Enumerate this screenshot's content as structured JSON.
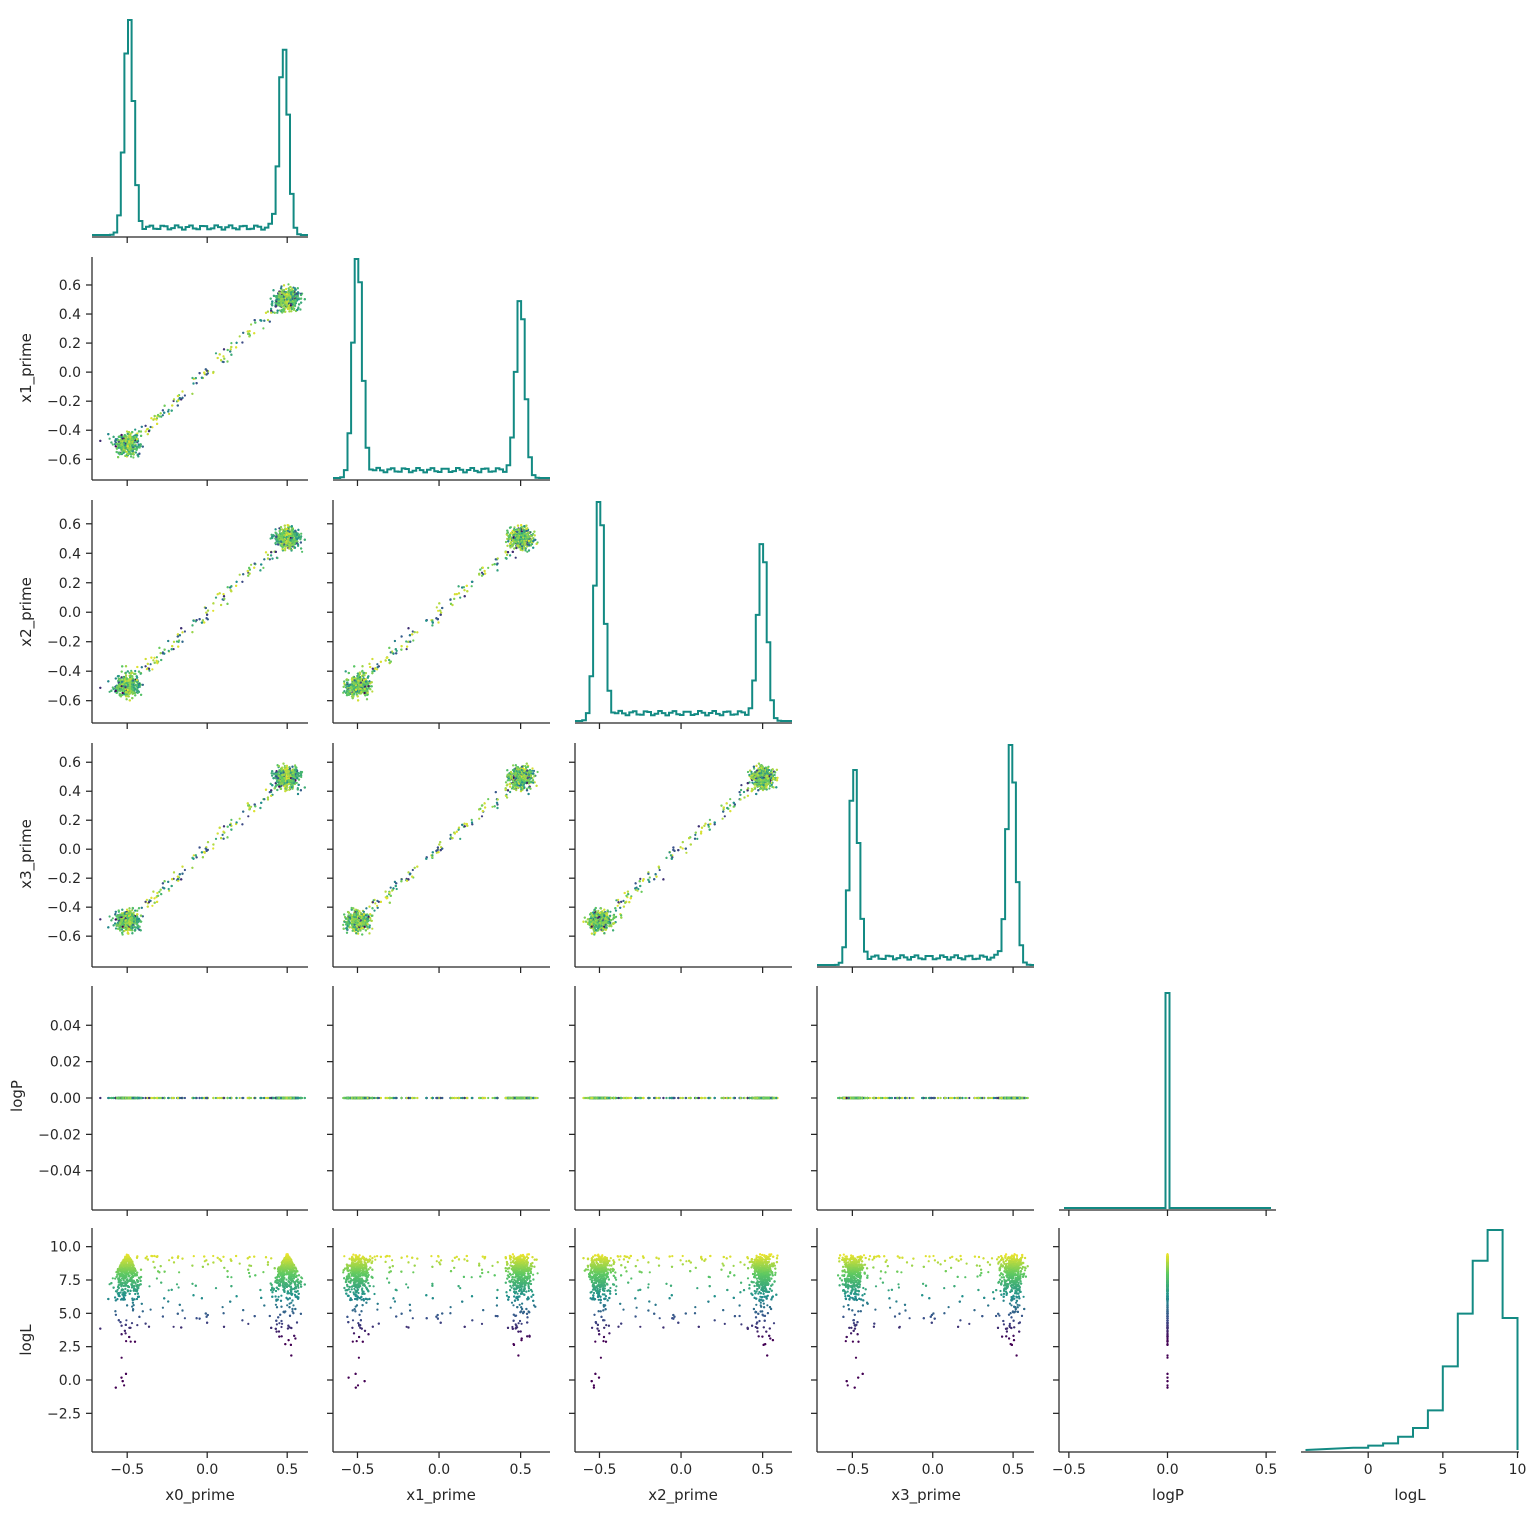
{
  "chart_data": {
    "type": "corner",
    "variables": [
      "x0_prime",
      "x1_prime",
      "x2_prime",
      "x3_prime",
      "logP",
      "logL"
    ],
    "colors": {
      "hist": "#138a83",
      "colormap": "viridis",
      "low": "#3b528b",
      "mid": "#21918c",
      "high": "#fde725"
    },
    "x_tick_labels": {
      "x0_prime": [
        "−0.5",
        "0.0",
        "0.5"
      ],
      "x1_prime": [
        "−0.5",
        "0.0",
        "0.5"
      ],
      "x2_prime": [
        "−0.5",
        "0.0",
        "0.5"
      ],
      "x3_prime": [
        "−0.5",
        "0.0",
        "0.5"
      ],
      "logP": [
        "−0.5",
        "0.0",
        "0.5"
      ],
      "logL": [
        "0",
        "5",
        "10"
      ]
    },
    "y_tick_labels": {
      "x1_prime": [
        "0.6",
        "0.4",
        "0.2",
        "0.0",
        "−0.2",
        "−0.4",
        "−0.6"
      ],
      "x2_prime": [
        "0.6",
        "0.4",
        "0.2",
        "0.0",
        "−0.2",
        "−0.4",
        "−0.6"
      ],
      "x3_prime": [
        "0.6",
        "0.4",
        "0.2",
        "0.0",
        "−0.2",
        "−0.4",
        "−0.6"
      ],
      "logP": [
        "0.04",
        "0.02",
        "0.00",
        "−0.02",
        "−0.04"
      ],
      "logL": [
        "10.0",
        "7.5",
        "5.0",
        "2.5",
        "0.0",
        "−2.5"
      ]
    },
    "ranges": {
      "x0_prime": [
        -0.72,
        0.63
      ],
      "x1_prime": [
        -0.65,
        0.68
      ],
      "x2_prime": [
        -0.65,
        0.68
      ],
      "x3_prime": [
        -0.72,
        0.63
      ],
      "logP": [
        -0.55,
        0.55
      ],
      "logL": [
        -4.5,
        10.1
      ]
    },
    "y_ranges": {
      "x1_prime": [
        -0.66,
        0.71
      ],
      "x2_prime": [
        -0.67,
        0.68
      ],
      "x3_prime": [
        -0.73,
        0.65
      ],
      "logP": [
        -0.055,
        0.055
      ],
      "logL": [
        -4.5,
        10.5
      ]
    },
    "modes": [
      -0.5,
      0.5
    ],
    "logP_value": 0.0,
    "logL_max": 9.6,
    "diagonal_histograms": [
      {
        "variable": "x0_prime",
        "shape": "bimodal",
        "peaks": [
          -0.49,
          0.48
        ],
        "relative_heights": [
          1.0,
          0.87
        ]
      },
      {
        "variable": "x1_prime",
        "shape": "bimodal",
        "peaks": [
          -0.5,
          0.5
        ],
        "relative_heights": [
          1.0,
          0.8
        ]
      },
      {
        "variable": "x2_prime",
        "shape": "bimodal",
        "peaks": [
          -0.5,
          0.5
        ],
        "relative_heights": [
          1.0,
          0.8
        ]
      },
      {
        "variable": "x3_prime",
        "shape": "bimodal",
        "peaks": [
          -0.49,
          0.49
        ],
        "relative_heights": [
          0.9,
          1.0
        ]
      },
      {
        "variable": "logP",
        "shape": "spike",
        "peaks": [
          0.0
        ],
        "relative_heights": [
          1.0
        ]
      },
      {
        "variable": "logL",
        "bins": [
          -1,
          0,
          1,
          2,
          3,
          4,
          5,
          6,
          7,
          8,
          9
        ],
        "counts": [
          1,
          2,
          3,
          6,
          10,
          18,
          38,
          62,
          86,
          100,
          60
        ]
      }
    ]
  }
}
